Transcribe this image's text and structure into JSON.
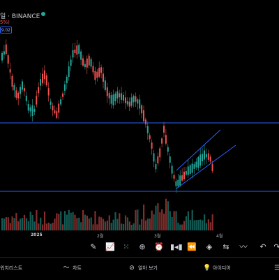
{
  "header": {
    "title": "일 · BINANCE",
    "change": "5%)",
    "price_tag": "9.02"
  },
  "x_axis": {
    "year": "2025",
    "feb": "2월",
    "mar": "3월",
    "apr": "4월"
  },
  "colors": {
    "up": "#26a69a",
    "down": "#ef5350",
    "drawing": "#2962ff"
  },
  "toolbar": {
    "tools": [
      "pencil-icon",
      "line-chart-icon",
      "grid-icon",
      "add-icon",
      "alarm-icon",
      "replay-icon",
      "rewind-icon",
      "arrow-icon",
      "layers-icon",
      "swap-icon",
      "draw-icon",
      "undo-icon",
      "redo-icon"
    ]
  },
  "bottom_nav": {
    "watchlist": "워치리스트",
    "chart": "차트",
    "explore": "알아 보기",
    "ideas": "아이디어"
  }
}
